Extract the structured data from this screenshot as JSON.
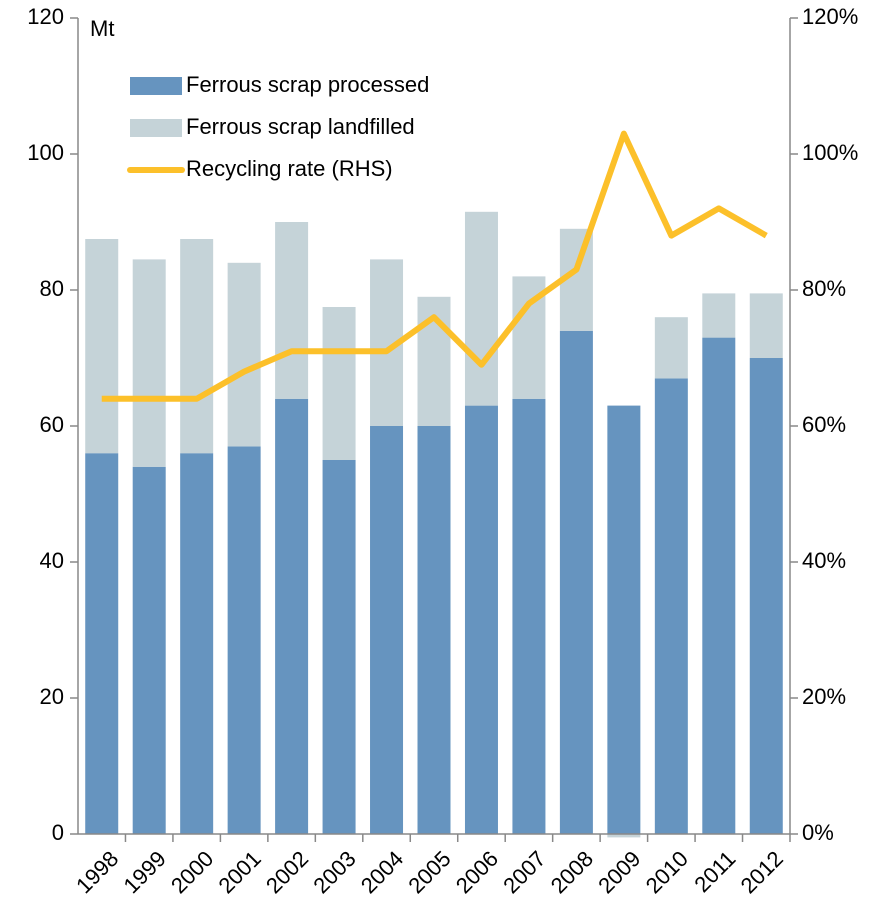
{
  "chart_data": {
    "type": "bar",
    "stacked": true,
    "y_label": "Mt",
    "categories": [
      "1998",
      "1999",
      "2000",
      "2001",
      "2002",
      "2003",
      "2004",
      "2005",
      "2006",
      "2007",
      "2008",
      "2009",
      "2010",
      "2011",
      "2012"
    ],
    "series": [
      {
        "name": "Ferrous scrap processed",
        "color": "#6694bf",
        "type": "bar",
        "values": [
          56,
          54,
          56,
          57,
          64,
          55,
          60,
          60,
          63,
          64,
          74,
          63,
          67,
          73,
          70
        ]
      },
      {
        "name": "Ferrous scrap landfilled",
        "color": "#c5d3d8",
        "type": "bar",
        "values": [
          31.5,
          30.5,
          31.5,
          27,
          26,
          22.5,
          24.5,
          19,
          28.5,
          18,
          15,
          -0.5,
          9,
          6.5,
          9.5
        ]
      },
      {
        "name": "Recycling rate (RHS)",
        "color": "#fcc02a",
        "type": "line",
        "axis": "y2",
        "values": [
          64,
          64,
          64,
          68,
          71,
          71,
          71,
          76,
          69,
          78,
          83,
          103,
          88,
          92,
          88
        ]
      }
    ],
    "ylim": [
      0,
      120
    ],
    "yticks": [
      0,
      20,
      40,
      60,
      80,
      100,
      120
    ],
    "y2lim": [
      0,
      120
    ],
    "y2ticks": [
      {
        "value": 0,
        "label": "0%"
      },
      {
        "value": 20,
        "label": "20%"
      },
      {
        "value": 40,
        "label": "40%"
      },
      {
        "value": 60,
        "label": "60%"
      },
      {
        "value": 80,
        "label": "80%"
      },
      {
        "value": 100,
        "label": "100%"
      },
      {
        "value": 120,
        "label": "120%"
      }
    ],
    "legend": "top-left",
    "grid": false
  }
}
